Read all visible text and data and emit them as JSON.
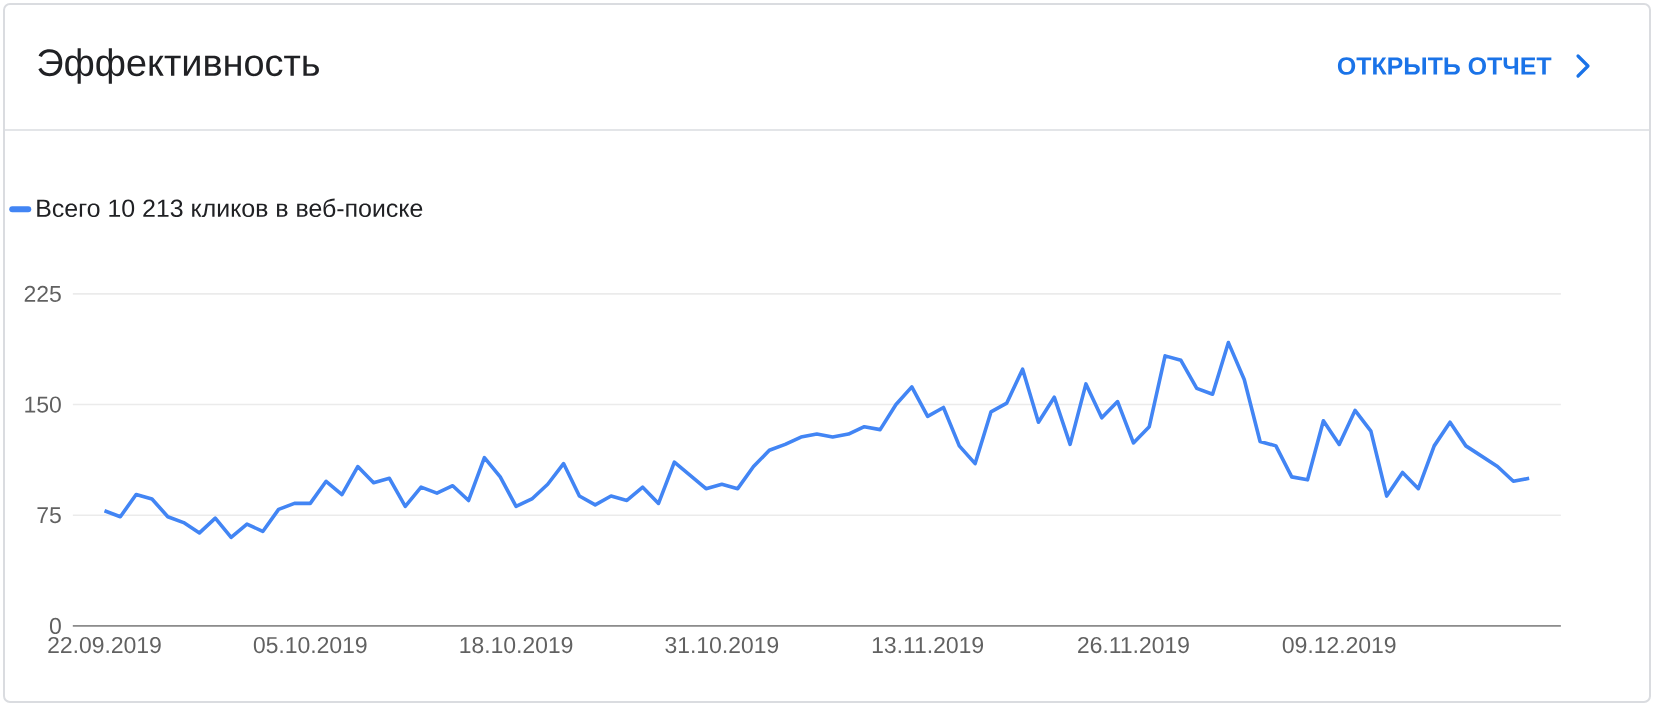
{
  "chart_data": {
    "type": "line",
    "title": "Эффективность",
    "annotations": [
      "ОТКРЫТЬ ОТЧЕТ"
    ],
    "x": [
      "2019-09-22",
      "2019-09-23",
      "2019-09-24",
      "2019-09-25",
      "2019-09-26",
      "2019-09-27",
      "2019-09-28",
      "2019-09-29",
      "2019-09-30",
      "2019-10-01",
      "2019-10-02",
      "2019-10-03",
      "2019-10-04",
      "2019-10-05",
      "2019-10-06",
      "2019-10-07",
      "2019-10-08",
      "2019-10-09",
      "2019-10-10",
      "2019-10-11",
      "2019-10-12",
      "2019-10-13",
      "2019-10-14",
      "2019-10-15",
      "2019-10-16",
      "2019-10-17",
      "2019-10-18",
      "2019-10-19",
      "2019-10-20",
      "2019-10-21",
      "2019-10-22",
      "2019-10-23",
      "2019-10-24",
      "2019-10-25",
      "2019-10-26",
      "2019-10-27",
      "2019-10-28",
      "2019-10-29",
      "2019-10-30",
      "2019-10-31",
      "2019-11-01",
      "2019-11-02",
      "2019-11-03",
      "2019-11-04",
      "2019-11-05",
      "2019-11-06",
      "2019-11-07",
      "2019-11-08",
      "2019-11-09",
      "2019-11-10",
      "2019-11-11",
      "2019-11-12",
      "2019-11-13",
      "2019-11-14",
      "2019-11-15",
      "2019-11-16",
      "2019-11-17",
      "2019-11-18",
      "2019-11-19",
      "2019-11-20",
      "2019-11-21",
      "2019-11-22",
      "2019-11-23",
      "2019-11-24",
      "2019-11-25",
      "2019-11-26",
      "2019-11-27",
      "2019-11-28",
      "2019-11-29",
      "2019-11-30",
      "2019-12-01",
      "2019-12-02",
      "2019-12-03",
      "2019-12-04",
      "2019-12-05",
      "2019-12-06",
      "2019-12-07",
      "2019-12-08",
      "2019-12-09",
      "2019-12-10",
      "2019-12-11",
      "2019-12-12",
      "2019-12-13",
      "2019-12-14",
      "2019-12-15",
      "2019-12-16",
      "2019-12-17",
      "2019-12-18",
      "2019-12-19",
      "2019-12-20",
      "2019-12-21"
    ],
    "series": [
      {
        "name": "Всего 10 213 кликов в веб-поиске",
        "color": "#4285f4",
        "values": [
          78,
          74,
          89,
          86,
          74,
          70,
          63,
          73,
          60,
          69,
          64,
          79,
          83,
          83,
          98,
          89,
          108,
          97,
          100,
          81,
          94,
          90,
          95,
          85,
          114,
          101,
          81,
          86,
          96,
          110,
          88,
          82,
          88,
          85,
          94,
          83,
          111,
          102,
          93,
          96,
          93,
          108,
          119,
          123,
          128,
          130,
          128,
          130,
          135,
          133,
          150,
          162,
          142,
          148,
          122,
          110,
          145,
          151,
          174,
          138,
          155,
          123,
          164,
          141,
          152,
          124,
          135,
          183,
          180,
          161,
          157,
          192,
          167,
          125,
          122,
          101,
          99,
          139,
          123,
          146,
          132,
          88,
          104,
          93,
          122,
          138,
          122,
          115,
          108,
          98,
          100
        ]
      }
    ],
    "xlim": [
      "2019-09-20",
      "2019-12-23"
    ],
    "xticks": [
      {
        "value": "2019-09-22",
        "label": "22.09.2019"
      },
      {
        "value": "2019-10-05",
        "label": "05.10.2019"
      },
      {
        "value": "2019-10-18",
        "label": "18.10.2019"
      },
      {
        "value": "2019-10-31",
        "label": "31.10.2019"
      },
      {
        "value": "2019-11-13",
        "label": "13.11.2019"
      },
      {
        "value": "2019-11-26",
        "label": "26.11.2019"
      },
      {
        "value": "2019-12-09",
        "label": "09.12.2019"
      }
    ],
    "ylim": [
      0,
      225
    ],
    "yticks": [
      0,
      75,
      150,
      225
    ],
    "grid": "y",
    "legend": "top left",
    "marker": "none",
    "line_style": "solid"
  }
}
